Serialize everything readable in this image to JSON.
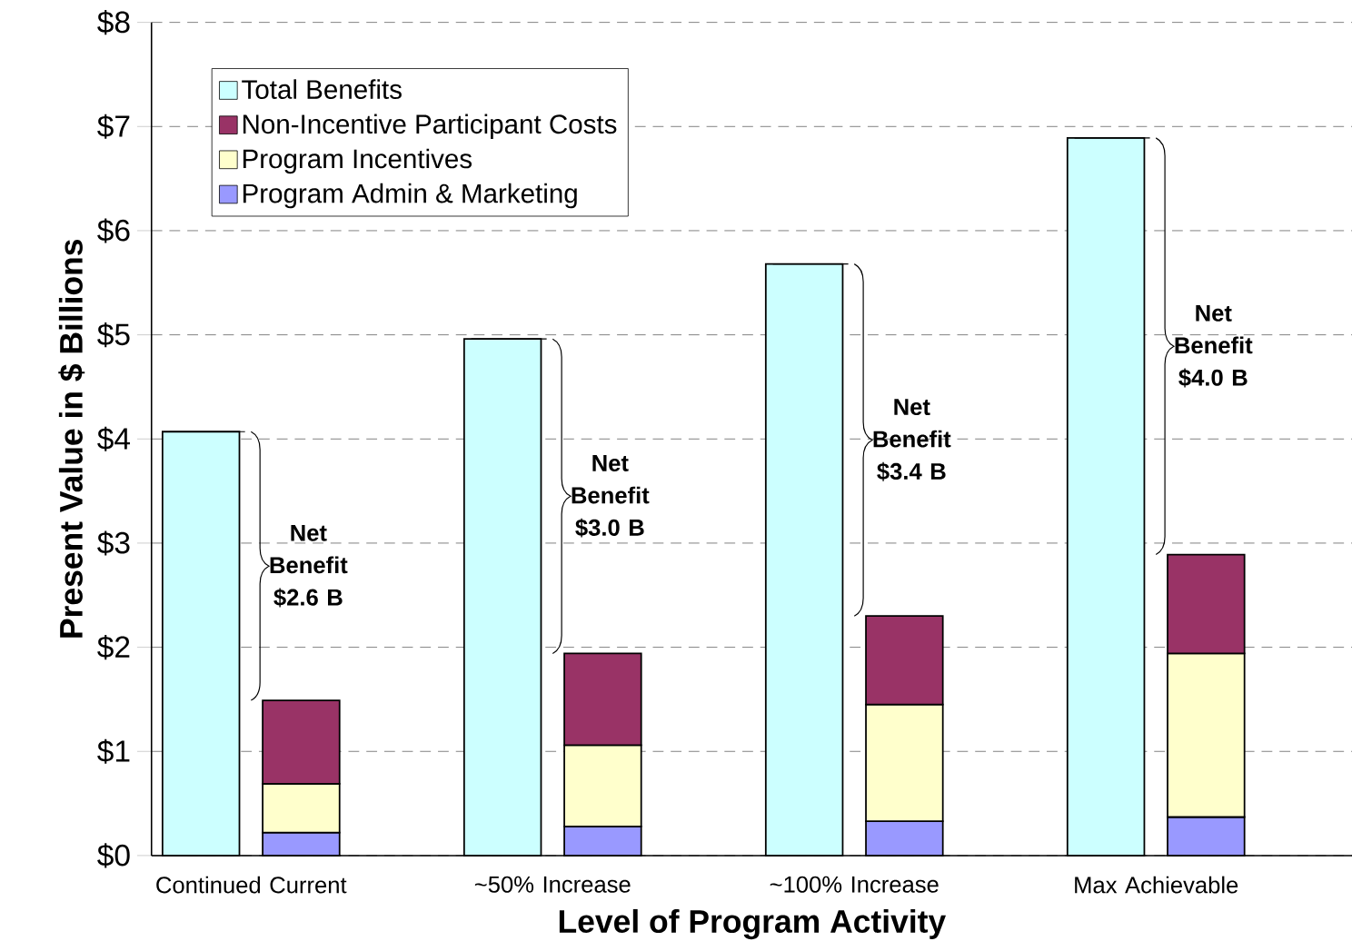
{
  "chart_data": {
    "type": "bar",
    "xlabel": "Level of Program Activity",
    "ylabel": "Present Value in $ Billions",
    "categories": [
      "Continued Current",
      "~50% Increase",
      "~100% Increase",
      "Max Achievable"
    ],
    "series": [
      {
        "name": "Total Benefits",
        "color": "#ccffff",
        "values": [
          4.07,
          4.96,
          5.68,
          6.89
        ]
      },
      {
        "name": "Program Admin & Marketing",
        "color": "#9999ff",
        "base": [
          0,
          0,
          0,
          0
        ],
        "values": [
          0.22,
          0.28,
          0.33,
          0.37
        ]
      },
      {
        "name": "Program Incentives",
        "color": "#ffffcc",
        "base": [
          0.22,
          0.28,
          0.33,
          0.37
        ],
        "values": [
          0.47,
          0.78,
          1.12,
          1.57
        ]
      },
      {
        "name": "Non-Incentive Participant Costs",
        "color": "#993366",
        "base": [
          0.69,
          1.06,
          1.45,
          1.94
        ],
        "values": [
          0.8,
          0.88,
          0.85,
          0.95
        ]
      }
    ],
    "ylim": [
      0,
      8
    ],
    "yticks": [
      {
        "value": 0,
        "label": "$0"
      },
      {
        "value": 1,
        "label": "$1"
      },
      {
        "value": 2,
        "label": "$2"
      },
      {
        "value": 3,
        "label": "$3"
      },
      {
        "value": 4,
        "label": "$4"
      },
      {
        "value": 5,
        "label": "$5"
      },
      {
        "value": 6,
        "label": "$6"
      },
      {
        "value": 7,
        "label": "$7"
      },
      {
        "value": 8,
        "label": "$8"
      }
    ],
    "annotations": [
      "Net Benefit $2.6 B",
      "Net Benefit $3.0 B",
      "Net Benefit $3.4 B",
      "Net Benefit $4.0 B"
    ],
    "grid": "y",
    "legend": "top left"
  }
}
